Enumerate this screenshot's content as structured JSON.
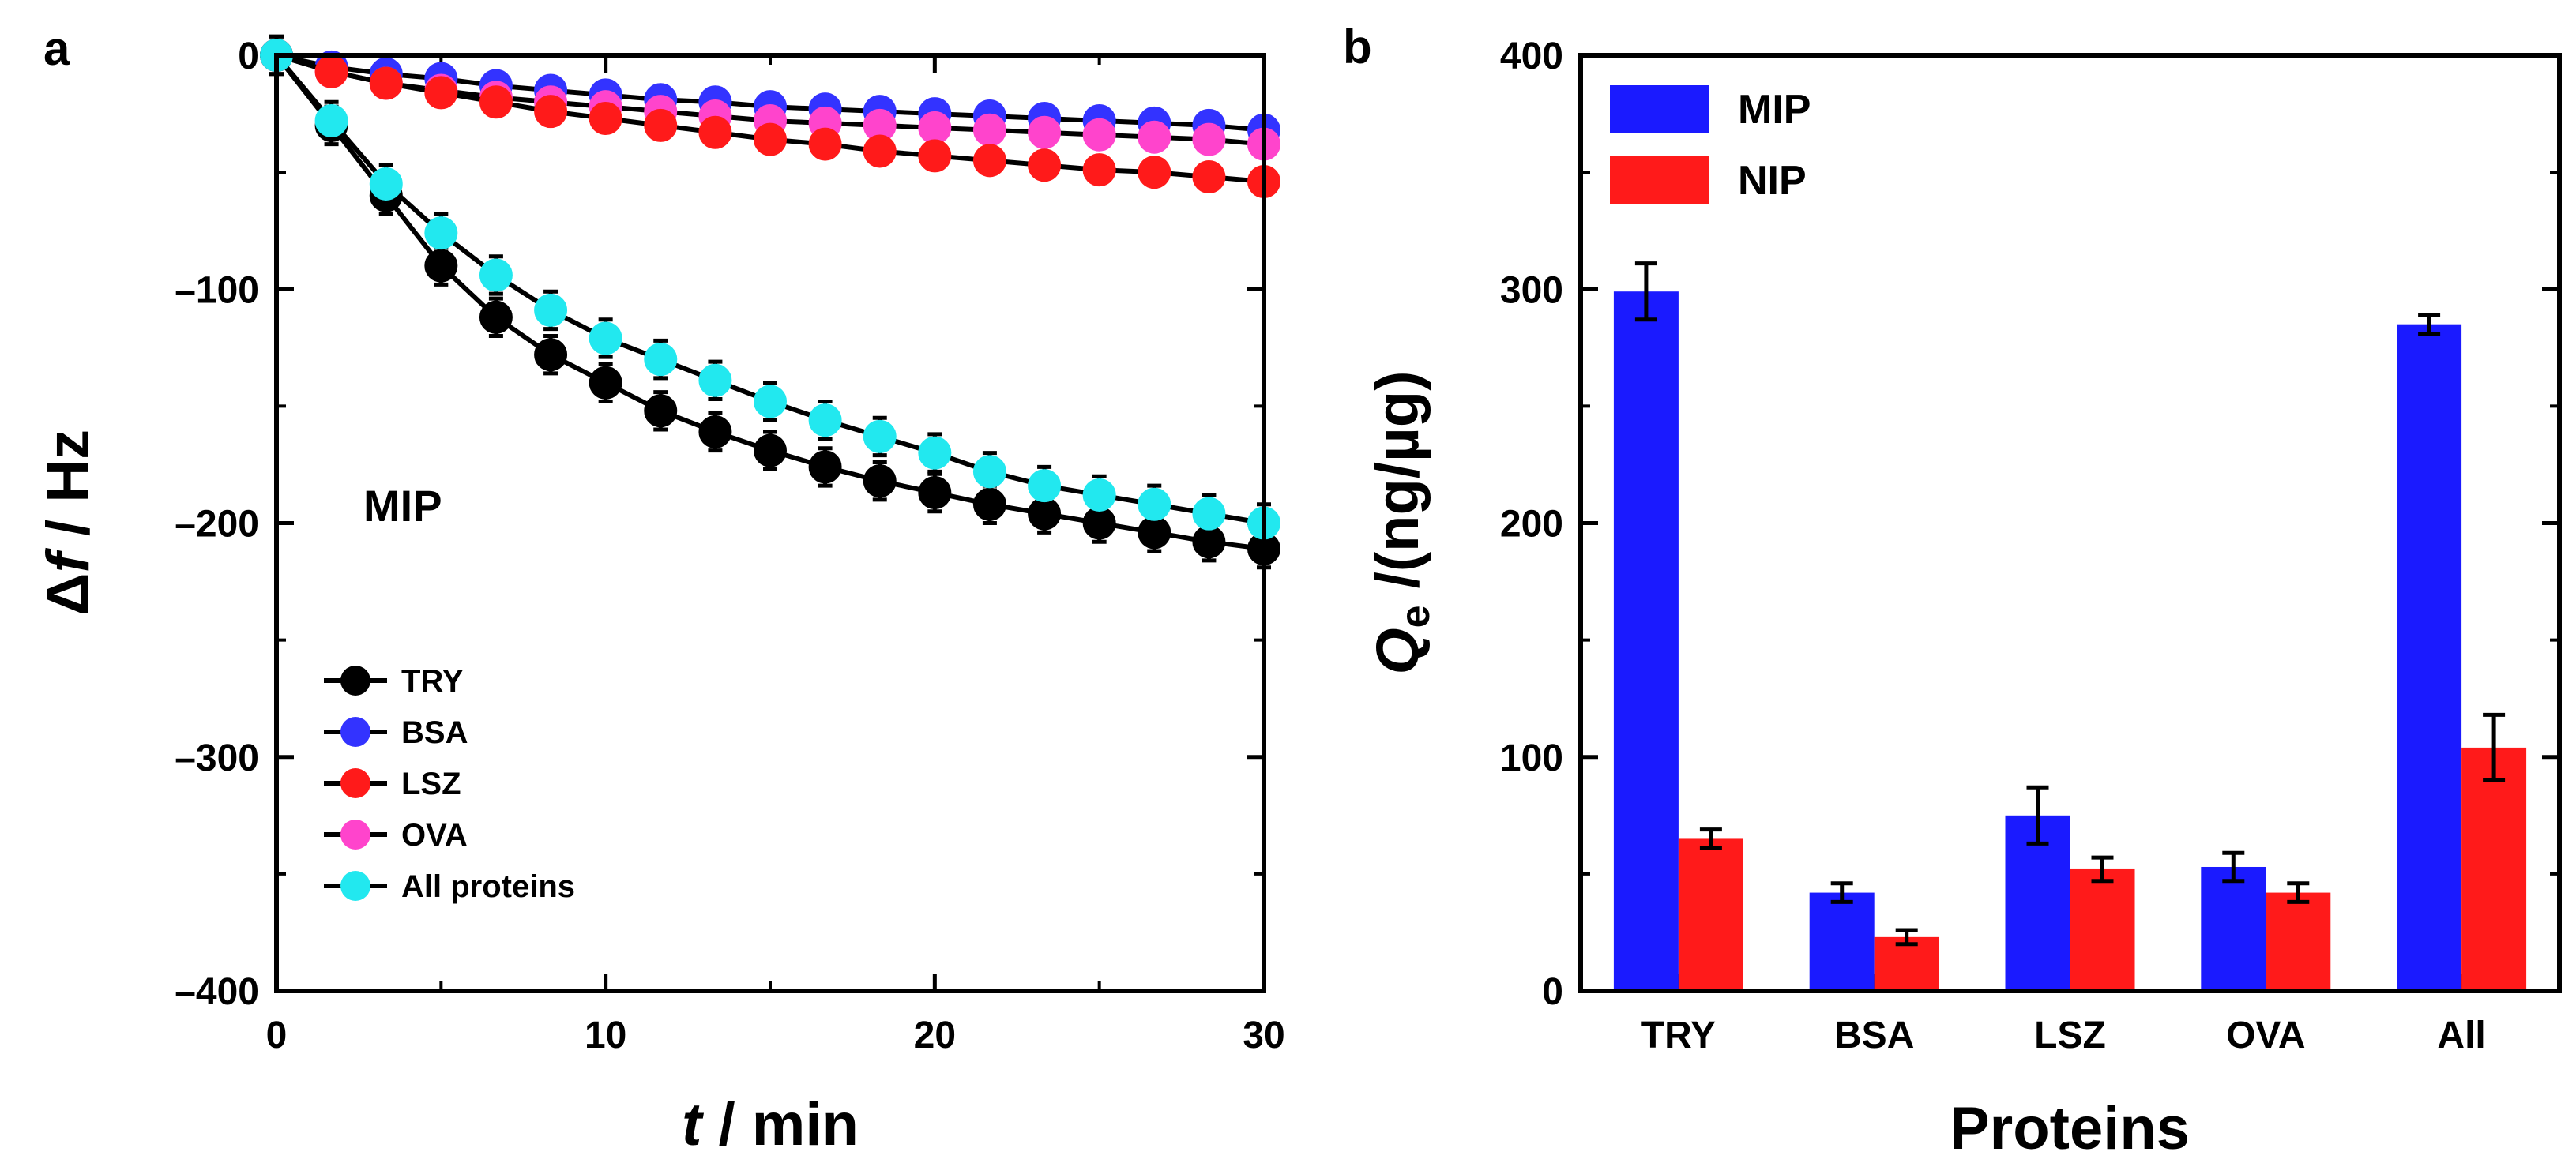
{
  "chart_data": [
    {
      "panel_label": "a",
      "type": "line",
      "annotation": "MIP",
      "xlabel_italic": "t",
      "xlabel_rest": " / min",
      "ylabel_prefix": "Δ",
      "ylabel_italic": "f",
      "ylabel_rest": " / Hz",
      "xlim": [
        0,
        30
      ],
      "ylim": [
        -400,
        0
      ],
      "xticks": [
        0,
        10,
        20,
        30
      ],
      "yticks": [
        0,
        -100,
        -200,
        -300,
        -400
      ],
      "ytick_labels": [
        "0",
        "–100",
        "–200",
        "–300",
        "–400"
      ],
      "x": [
        0,
        1.67,
        3.33,
        5,
        6.67,
        8.33,
        10,
        11.67,
        13.33,
        15,
        16.67,
        18.33,
        20,
        21.67,
        23.33,
        25,
        26.67,
        28.33,
        30
      ],
      "series": [
        {
          "name": "BSA",
          "color": "#3333ff",
          "values": [
            0,
            -5,
            -8,
            -10,
            -13,
            -15,
            -17,
            -19,
            -20,
            -22,
            -23,
            -24,
            -25,
            -26,
            -27,
            -28,
            -29,
            -30,
            -32
          ],
          "error": 4
        },
        {
          "name": "OVA",
          "color": "#ff44cc",
          "values": [
            0,
            -7,
            -12,
            -15,
            -18,
            -20,
            -22,
            -24,
            -26,
            -28,
            -29,
            -30,
            -31,
            -32,
            -33,
            -34,
            -35,
            -36,
            -38
          ],
          "error": 4
        },
        {
          "name": "LSZ",
          "color": "#ff1a1a",
          "values": [
            0,
            -7,
            -12,
            -16,
            -20,
            -24,
            -27,
            -30,
            -33,
            -36,
            -38,
            -41,
            -43,
            -45,
            -47,
            -49,
            -50,
            -52,
            -54
          ],
          "error": 5
        },
        {
          "name": "TRY",
          "color": "#000000",
          "values": [
            0,
            -30,
            -60,
            -90,
            -112,
            -128,
            -140,
            -152,
            -161,
            -169,
            -176,
            -182,
            -187,
            -192,
            -196,
            -200,
            -204,
            -208,
            -211
          ],
          "error": 8
        },
        {
          "name": "All proteins",
          "color": "#22e8ef",
          "values": [
            0,
            -28,
            -55,
            -76,
            -94,
            -109,
            -121,
            -130,
            -139,
            -148,
            -156,
            -163,
            -170,
            -178,
            -184,
            -188,
            -192,
            -196,
            -200
          ],
          "error": 8
        }
      ],
      "legend": [
        "TRY",
        "BSA",
        "LSZ",
        "OVA",
        "All proteins"
      ],
      "legend_position": "bottom-left"
    },
    {
      "panel_label": "b",
      "type": "bar",
      "categories": [
        "TRY",
        "BSA",
        "LSZ",
        "OVA",
        "All"
      ],
      "series": [
        {
          "name": "MIP",
          "color": "#1a1aff",
          "values": [
            299,
            42,
            75,
            53,
            285
          ],
          "errors": [
            12,
            4,
            12,
            6,
            4
          ]
        },
        {
          "name": "NIP",
          "color": "#ff1a1a",
          "values": [
            65,
            23,
            52,
            42,
            104
          ],
          "errors": [
            4,
            3,
            5,
            4,
            14
          ]
        }
      ],
      "xlabel": "Proteins",
      "ylabel_italic": "Q",
      "ylabel_sub": "e",
      "ylabel_rest": " /(ng/µg)",
      "ylim": [
        0,
        400
      ],
      "yticks": [
        0,
        100,
        200,
        300,
        400
      ],
      "legend_position": "top-left"
    }
  ]
}
